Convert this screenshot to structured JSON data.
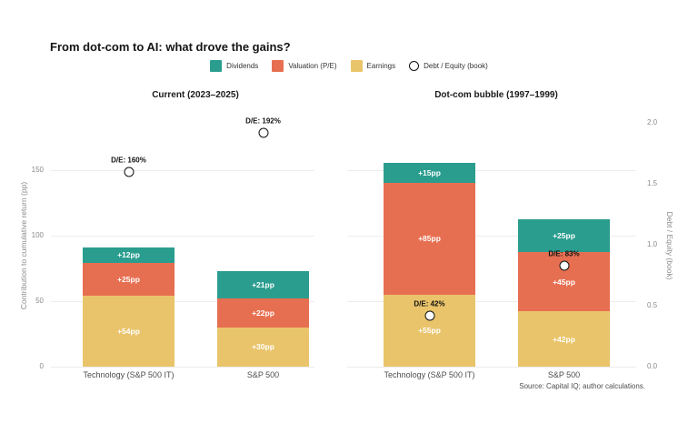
{
  "title": "From dot-com to AI: what drove the gains?",
  "legend": {
    "items": [
      {
        "label": "Dividends",
        "color": "#2a9d8f",
        "marker": "square"
      },
      {
        "label": "Valuation (P/E)",
        "color": "#e76f51",
        "marker": "square"
      },
      {
        "label": "Earnings",
        "color": "#e9c46a",
        "marker": "square"
      },
      {
        "label": "Debt / Equity (book)",
        "color": "#ffffff",
        "marker": "circle"
      }
    ]
  },
  "chart_data": {
    "type": "bar",
    "stacked": true,
    "grid": "horizontal",
    "panels": [
      {
        "title": "Current (2023–2025)",
        "categories": [
          "Technology (S&P 500 IT)",
          "S&P 500"
        ],
        "series": [
          {
            "name": "Earnings",
            "color": "#e9c46a",
            "values": [
              54,
              30
            ],
            "labels": [
              "+54pp",
              "+30pp"
            ]
          },
          {
            "name": "Valuation (P/E)",
            "color": "#e76f51",
            "values": [
              25,
              22
            ],
            "labels": [
              "+25pp",
              "+22pp"
            ]
          },
          {
            "name": "Dividends",
            "color": "#2a9d8f",
            "values": [
              12,
              21
            ],
            "labels": [
              "+12pp",
              "+21pp"
            ]
          }
        ],
        "totals": [
          91,
          73
        ],
        "debt_equity": [
          {
            "value": 1.6,
            "label": "D/E: 160%"
          },
          {
            "value": 1.92,
            "label": "D/E: 192%"
          }
        ]
      },
      {
        "title": "Dot-com bubble (1997–1999)",
        "categories": [
          "Technology (S&P 500 IT)",
          "S&P 500"
        ],
        "series": [
          {
            "name": "Earnings",
            "color": "#e9c46a",
            "values": [
              55,
              42
            ],
            "labels": [
              "+55pp",
              "+42pp"
            ]
          },
          {
            "name": "Valuation (P/E)",
            "color": "#e76f51",
            "values": [
              85,
              45
            ],
            "labels": [
              "+85pp",
              "+45pp"
            ]
          },
          {
            "name": "Dividends",
            "color": "#2a9d8f",
            "values": [
              15,
              25
            ],
            "labels": [
              "+15pp",
              "+25pp"
            ]
          }
        ],
        "totals": [
          155,
          112
        ],
        "debt_equity": [
          {
            "value": 0.42,
            "label": "D/E: 42%"
          },
          {
            "value": 0.83,
            "label": "D/E: 83%"
          }
        ]
      }
    ],
    "left_axis": {
      "label": "Contribution to cumulative return (pp)",
      "ticks": [
        0,
        50,
        100,
        150
      ],
      "range": [
        0,
        150
      ]
    },
    "right_axis": {
      "label": "Debt / Equity (book)",
      "ticks": [
        "0.0",
        "0.5",
        "1.0",
        "1.5",
        "2.0"
      ],
      "range": [
        0,
        2
      ]
    },
    "source": "Source: Capital IQ; author calculations."
  }
}
